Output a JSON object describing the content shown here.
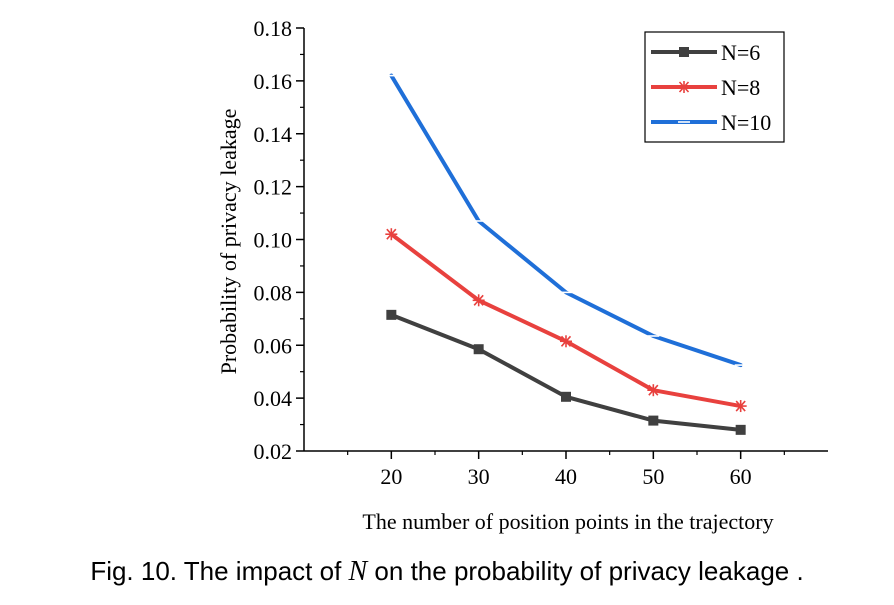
{
  "chart_data": {
    "type": "line",
    "x": [
      20,
      30,
      40,
      50,
      60
    ],
    "xticks": [
      20,
      30,
      40,
      50,
      60
    ],
    "xlim": [
      10,
      70
    ],
    "yticks": [
      "0.02",
      "0.04",
      "0.06",
      "0.08",
      "0.10",
      "0.12",
      "0.14",
      "0.16",
      "0.18"
    ],
    "ylim": [
      0.02,
      0.18
    ],
    "xlabel": "The number of position points in the trajectory",
    "ylabel": "Probability of privacy leakage",
    "legend_position": "top-right",
    "grid": false,
    "series": [
      {
        "name": "N=6",
        "values": [
          0.0715,
          0.0585,
          0.0405,
          0.0315,
          0.028
        ],
        "color": "#404040",
        "marker": "square"
      },
      {
        "name": "N=8",
        "values": [
          0.102,
          0.077,
          0.0615,
          0.043,
          0.037
        ],
        "color": "#e8413e",
        "marker": "asterisk"
      },
      {
        "name": "N=10",
        "values": [
          0.162,
          0.107,
          0.08,
          0.0635,
          0.0525
        ],
        "color": "#1f6fd8",
        "marker": "dash"
      }
    ]
  },
  "caption": {
    "prefix": "Fig. 10. The impact of ",
    "variable": "N",
    "suffix": " on the probability of privacy leakage ."
  }
}
